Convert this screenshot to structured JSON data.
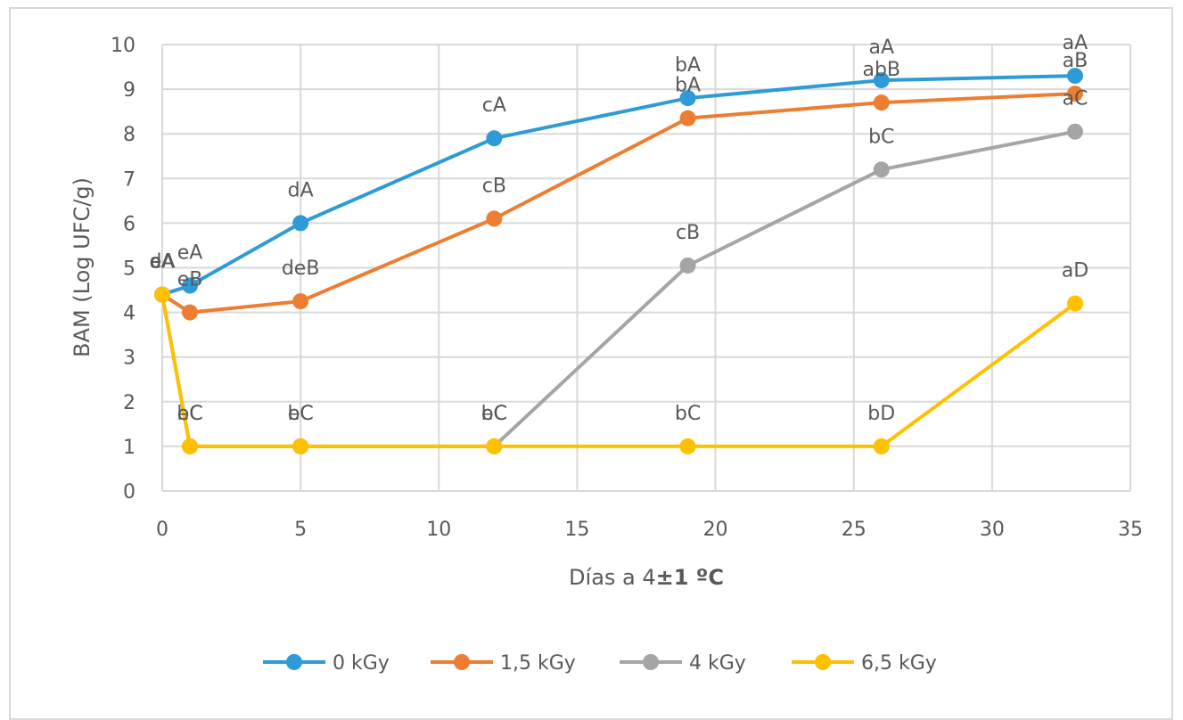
{
  "chart_data": {
    "type": "line",
    "title": "",
    "xlabel_prefix": "Días a 4",
    "xlabel_bold": "±1 ºC",
    "ylabel": "BAM (Log UFC/g)",
    "xlim": [
      0,
      35
    ],
    "ylim": [
      0,
      10
    ],
    "xticks": [
      0,
      5,
      10,
      15,
      20,
      25,
      30,
      35
    ],
    "yticks": [
      0,
      1,
      2,
      3,
      4,
      5,
      6,
      7,
      8,
      9,
      10
    ],
    "grid": true,
    "legend_position": "bottom",
    "series": [
      {
        "name": "0 kGy",
        "color": "#2e9bd6",
        "points": [
          {
            "x": 0,
            "y": 4.4,
            "label": "dA"
          },
          {
            "x": 1,
            "y": 4.6,
            "label": "eA"
          },
          {
            "x": 5,
            "y": 6.0,
            "label": "dA"
          },
          {
            "x": 12,
            "y": 7.9,
            "label": "cA"
          },
          {
            "x": 19,
            "y": 8.8,
            "label": "bA"
          },
          {
            "x": 26,
            "y": 9.2,
            "label": "aA"
          },
          {
            "x": 33,
            "y": 9.3,
            "label": "aA"
          }
        ]
      },
      {
        "name": "1,5 kGy",
        "color": "#ed7d31",
        "points": [
          {
            "x": 0,
            "y": 4.4,
            "label": "eA"
          },
          {
            "x": 1,
            "y": 4.0,
            "label": "eB"
          },
          {
            "x": 5,
            "y": 4.25,
            "label": "deB"
          },
          {
            "x": 12,
            "y": 6.1,
            "label": "cB"
          },
          {
            "x": 19,
            "y": 8.35,
            "label": "bA"
          },
          {
            "x": 26,
            "y": 8.7,
            "label": "abB"
          },
          {
            "x": 33,
            "y": 8.9,
            "label": "aB"
          }
        ]
      },
      {
        "name": "4 kGy",
        "color": "#a5a5a5",
        "points": [
          {
            "x": 0,
            "y": 4.4,
            "label": "cA"
          },
          {
            "x": 1,
            "y": 1.0,
            "label": "eC"
          },
          {
            "x": 5,
            "y": 1.0,
            "label": "eC"
          },
          {
            "x": 12,
            "y": 1.0,
            "label": "eC"
          },
          {
            "x": 19,
            "y": 5.05,
            "label": "cB"
          },
          {
            "x": 26,
            "y": 7.2,
            "label": "bC"
          },
          {
            "x": 33,
            "y": 8.05,
            "label": "aC"
          }
        ]
      },
      {
        "name": "6,5 kGy",
        "color": "#ffc000",
        "points": [
          {
            "x": 0,
            "y": 4.4,
            "label": "aA"
          },
          {
            "x": 1,
            "y": 1.0,
            "label": "bC"
          },
          {
            "x": 5,
            "y": 1.0,
            "label": "bC"
          },
          {
            "x": 12,
            "y": 1.0,
            "label": "bC"
          },
          {
            "x": 19,
            "y": 1.0,
            "label": "bC"
          },
          {
            "x": 26,
            "y": 1.0,
            "label": "bD"
          },
          {
            "x": 33,
            "y": 4.2,
            "label": "aD"
          }
        ]
      }
    ]
  }
}
